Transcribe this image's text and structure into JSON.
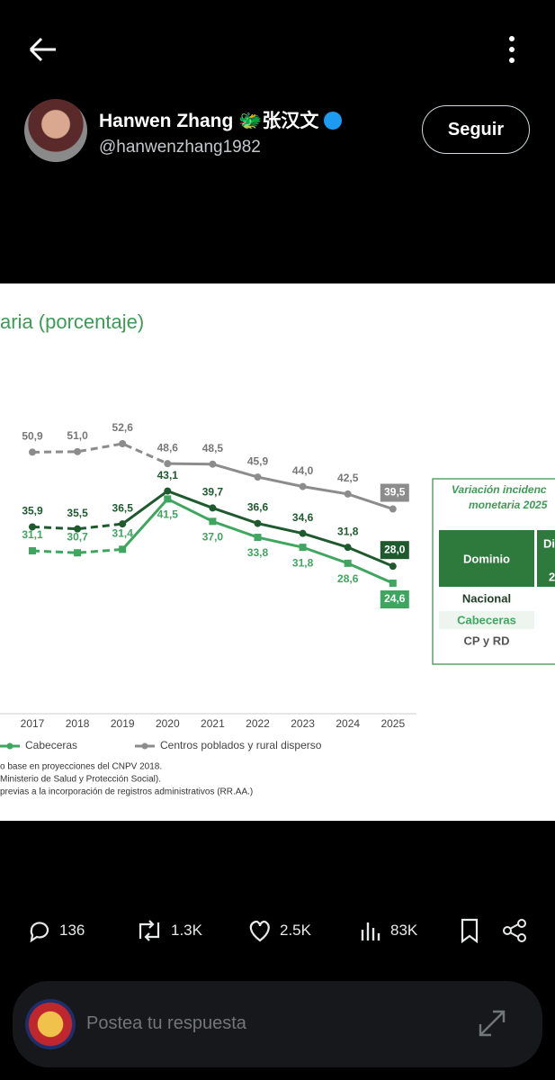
{
  "header": {
    "name": "Hanwen Zhang 🐲张汉文",
    "handle": "@hanwenzhang1982",
    "follow": "Seguir"
  },
  "chart_data": {
    "type": "line",
    "title": "aria (porcentaje)",
    "x": [
      "2017",
      "2018",
      "2019",
      "2020",
      "2021",
      "2022",
      "2023",
      "2024",
      "2025"
    ],
    "series": [
      {
        "name": "Centros poblados y rural disperso",
        "color": "#8c8c8c",
        "values": [
          50.9,
          51.0,
          52.6,
          48.6,
          48.5,
          45.9,
          44.0,
          42.5,
          39.5
        ],
        "value_labels": [
          "50,9",
          "51,0",
          "52,6",
          "48,6",
          "48,5",
          "45,9",
          "44,0",
          "42,5",
          "39,5"
        ]
      },
      {
        "color": "#1f5a2e",
        "values": [
          35.9,
          35.5,
          36.5,
          43.1,
          39.7,
          36.6,
          34.6,
          31.8,
          28.0
        ],
        "value_labels": [
          "35,9",
          "35,5",
          "36,5",
          "43,1",
          "39,7",
          "36,6",
          "34,6",
          "31,8",
          "28,0"
        ]
      },
      {
        "name": "Cabeceras",
        "color": "#3fa65f",
        "values": [
          31.1,
          30.7,
          31.4,
          41.5,
          37.0,
          33.8,
          31.8,
          28.6,
          24.6
        ],
        "value_labels": [
          "31,1",
          "30,7",
          "31,4",
          "41,5",
          "37,0",
          "33,8",
          "31,8",
          "28,6",
          "24,6"
        ]
      }
    ],
    "footnotes": [
      "o base en proyecciones del CNPV 2018.",
      "Ministerio de Salud y Protección Social).",
      "previas a la incorporación de registros administrativos (RR.AA.)"
    ],
    "side_table": {
      "title": [
        "Variación incidenc",
        "monetaria 2025"
      ],
      "header": [
        "Dominio",
        "Di",
        "2"
      ],
      "rows": [
        "Nacional",
        "Cabeceras",
        "CP y RD"
      ]
    }
  },
  "actions": {
    "replies": "136",
    "reposts": "1.3K",
    "likes": "2.5K",
    "views": "83K"
  },
  "reply": {
    "placeholder": "Postea tu respuesta"
  }
}
